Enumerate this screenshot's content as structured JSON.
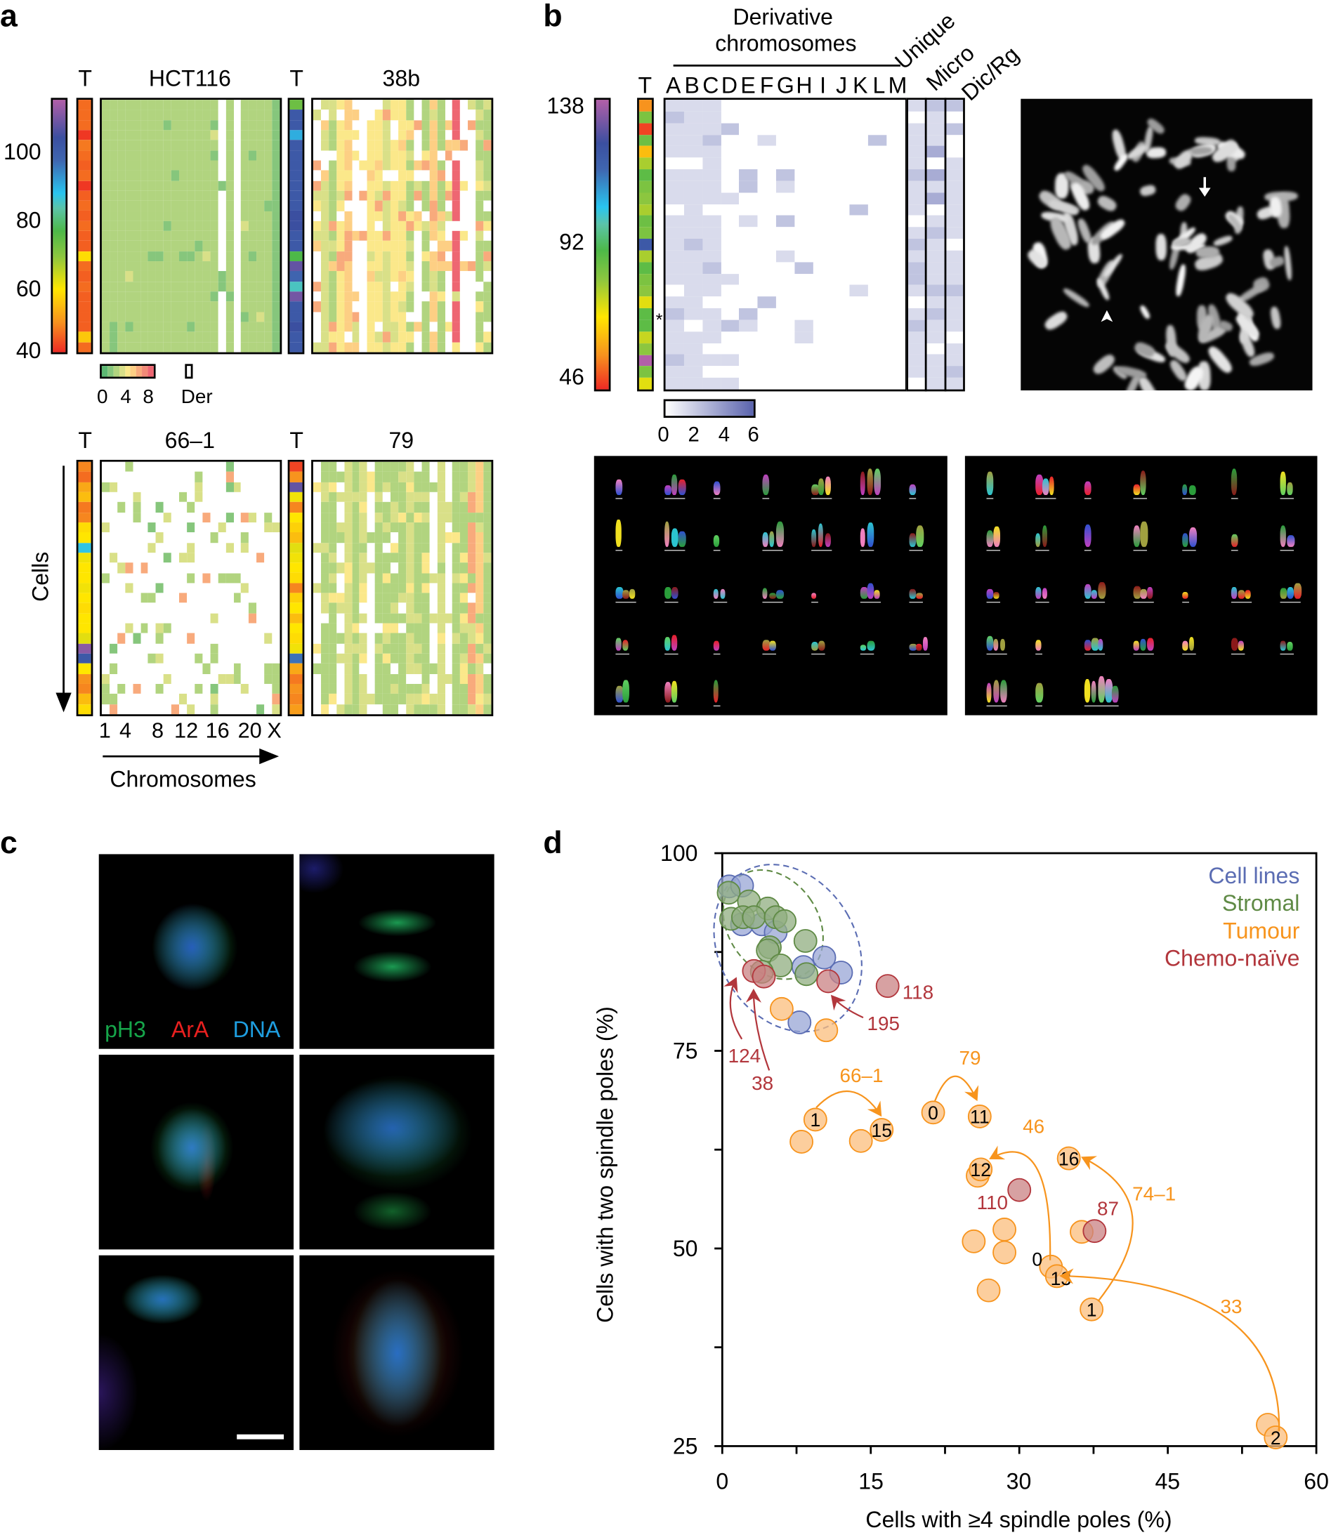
{
  "panel_labels": {
    "a": "a",
    "b": "b",
    "c": "c",
    "d": "d"
  },
  "copy_number_colors": [
    "#5db873",
    "#86c67c",
    "#b1d47f",
    "#d9e088",
    "#fbe88a",
    "#fdcf84",
    "#f8aa7c",
    "#f28a77",
    "#ee6672"
  ],
  "panel_a": {
    "ploidy_ticks": [
      "100",
      "80",
      "60",
      "40"
    ],
    "heatmaps": [
      {
        "title": "HCT116",
        "t_label": "T",
        "t_ploidy": [
          45,
          45,
          45,
          41,
          46,
          45,
          44,
          45,
          41,
          44,
          45,
          44,
          45,
          44,
          44,
          55,
          45,
          44,
          45,
          44,
          44,
          44,
          44,
          53,
          45
        ],
        "column_modes": "222222222222222w2w22221",
        "noise": 0.05,
        "alt": "1113",
        "seed": 11
      },
      {
        "title": "38b",
        "t_label": "T",
        "t_ploidy": [
          68,
          100,
          100,
          88,
          100,
          100,
          100,
          100,
          100,
          100,
          100,
          105,
          105,
          100,
          100,
          72,
          110,
          95,
          82,
          112,
          100,
          100,
          105,
          100,
          100
        ],
        "column_modes": "w3245ww443442w252w8ww22",
        "noise": 0.35,
        "alt": "w3456",
        "seed": 22
      },
      {
        "title": "66–1",
        "t_label": "T",
        "t_ploidy": [
          47,
          45,
          50,
          52,
          46,
          47,
          55,
          56,
          85,
          57,
          56,
          56,
          57,
          56,
          55,
          56,
          56,
          58,
          115,
          100,
          56,
          48,
          47,
          52,
          55
        ],
        "column_modes": "wwwwwwwwwwwwwwwwwwwwwww",
        "noise": 0.2,
        "alt": "122336",
        "seed": 33
      },
      {
        "title": "79",
        "t_label": "T",
        "t_ploidy": [
          42,
          48,
          110,
          57,
          47,
          56,
          54,
          52,
          58,
          57,
          56,
          55,
          47,
          54,
          56,
          52,
          56,
          55,
          57,
          93,
          50,
          46,
          48,
          47,
          49
        ],
        "column_modes": "w22w323w2222322w3w22652",
        "noise": 0.3,
        "alt": "23w34",
        "seed": 44
      }
    ],
    "legend": {
      "ticks": [
        "0",
        "4",
        "8"
      ],
      "der_label": "Der"
    },
    "x_ticks": [
      "1",
      "4",
      "8",
      "12",
      "16",
      "20",
      "X"
    ],
    "x_label": "Chromosomes",
    "y_label": "Cells"
  },
  "panel_b": {
    "title_line1": "Derivative",
    "title_line2": "chromosomes",
    "t_label": "T",
    "columns": [
      "A",
      "B",
      "C",
      "D",
      "E",
      "F",
      "G",
      "H",
      "I",
      "J",
      "K",
      "L",
      "M"
    ],
    "extra_columns": [
      "Unique",
      "Micro",
      "Dic/Rg"
    ],
    "ploidy_ticks": [
      "138",
      "92",
      "46"
    ],
    "t_ploidy": [
      48,
      66,
      42,
      68,
      52,
      62,
      70,
      66,
      64,
      62,
      68,
      66,
      100,
      62,
      70,
      66,
      64,
      58,
      70,
      70,
      60,
      64,
      125,
      66,
      58
    ],
    "column_modes": "1110000000000",
    "extra_modes": "111",
    "noise": 0.3,
    "alt": "00112",
    "seed": 55,
    "asterisk": "*",
    "legend_ticks": [
      "0",
      "2",
      "4",
      "6"
    ],
    "scale_colors": [
      "#ffffff",
      "#5a63ad"
    ]
  },
  "panel_c": {
    "stains": [
      {
        "label": "pH3",
        "color": "#16a54a"
      },
      {
        "label": "ArA",
        "color": "#e8201f"
      },
      {
        "label": "DNA",
        "color": "#1e9ee0"
      }
    ]
  },
  "chart_data": {
    "type": "scatter",
    "xlabel": "Cells with ≥4 spindle poles (%)",
    "ylabel": "Cells with two spindle poles (%)",
    "xlim": [
      0,
      60
    ],
    "ylim": [
      25,
      100
    ],
    "x_ticks": [
      "0",
      "15",
      "30",
      "45",
      "60"
    ],
    "y_ticks": [
      "100",
      "75",
      "50",
      "25"
    ],
    "legend_position": "top-right",
    "series": [
      {
        "name": "Cell lines",
        "color": "#5b6db3",
        "fill": "#98a6d6",
        "points": [
          [
            0.7,
            95.8
          ],
          [
            2.0,
            95.9
          ],
          [
            2.0,
            91.0
          ],
          [
            4.0,
            91.0
          ],
          [
            5.4,
            90.0
          ],
          [
            8.2,
            85.6
          ],
          [
            10.3,
            86.8
          ],
          [
            12.0,
            84.9
          ],
          [
            7.8,
            78.6
          ]
        ]
      },
      {
        "name": "Stromal",
        "color": "#5f8a45",
        "fill": "#90ad80",
        "points": [
          [
            0.65,
            95.0
          ],
          [
            2.7,
            93.9
          ],
          [
            4.6,
            93.0
          ],
          [
            0.9,
            91.7
          ],
          [
            2.1,
            91.9
          ],
          [
            3.2,
            91.9
          ],
          [
            5.4,
            91.9
          ],
          [
            6.3,
            91.4
          ],
          [
            4.8,
            88.1
          ],
          [
            4.6,
            87.7
          ],
          [
            8.4,
            88.9
          ],
          [
            5.9,
            85.8
          ],
          [
            8.5,
            84.7
          ],
          [
            4.0,
            85.0
          ]
        ]
      },
      {
        "name": "Tumour",
        "color": "#f7941d",
        "fill": "#fbbd7c",
        "points": [
          [
            6.0,
            80.3,
            ""
          ],
          [
            10.5,
            77.6,
            ""
          ],
          [
            9.4,
            66.3,
            "1"
          ],
          [
            16.1,
            65.0,
            "15"
          ],
          [
            8.0,
            63.5,
            ""
          ],
          [
            14.0,
            63.6,
            ""
          ],
          [
            21.3,
            67.2,
            "0"
          ],
          [
            26.0,
            66.7,
            "11"
          ],
          [
            25.8,
            59.2,
            ""
          ],
          [
            26.1,
            60.0,
            "12"
          ],
          [
            35.0,
            61.4,
            "16"
          ],
          [
            25.4,
            50.9,
            ""
          ],
          [
            28.5,
            52.4,
            ""
          ],
          [
            28.5,
            49.5,
            ""
          ],
          [
            26.9,
            44.7,
            ""
          ],
          [
            36.3,
            52.1,
            ""
          ],
          [
            33.2,
            47.7,
            "0"
          ],
          [
            33.8,
            46.5,
            "13"
          ],
          [
            37.3,
            42.3,
            "1"
          ],
          [
            55.1,
            27.7,
            ""
          ],
          [
            55.9,
            26.1,
            "2"
          ]
        ]
      },
      {
        "name": "Chemo-naïve",
        "color": "#b2363c",
        "fill": "#c98283",
        "points": [
          [
            3.2,
            85.1
          ],
          [
            4.2,
            84.4
          ],
          [
            10.7,
            83.8
          ],
          [
            16.7,
            83.2
          ],
          [
            30.0,
            57.4
          ],
          [
            37.6,
            52.2
          ]
        ]
      }
    ],
    "annotations": [
      {
        "text": "118",
        "color": "#b2363c"
      },
      {
        "text": "195",
        "color": "#b2363c"
      },
      {
        "text": "124",
        "color": "#b2363c"
      },
      {
        "text": "38",
        "color": "#b2363c"
      },
      {
        "text": "110",
        "color": "#b2363c"
      },
      {
        "text": "87",
        "color": "#b2363c"
      },
      {
        "text": "66–1",
        "color": "#f7941d"
      },
      {
        "text": "79",
        "color": "#f7941d"
      },
      {
        "text": "46",
        "color": "#f7941d"
      },
      {
        "text": "74–1",
        "color": "#f7941d"
      },
      {
        "text": "33",
        "color": "#f7941d"
      }
    ]
  }
}
